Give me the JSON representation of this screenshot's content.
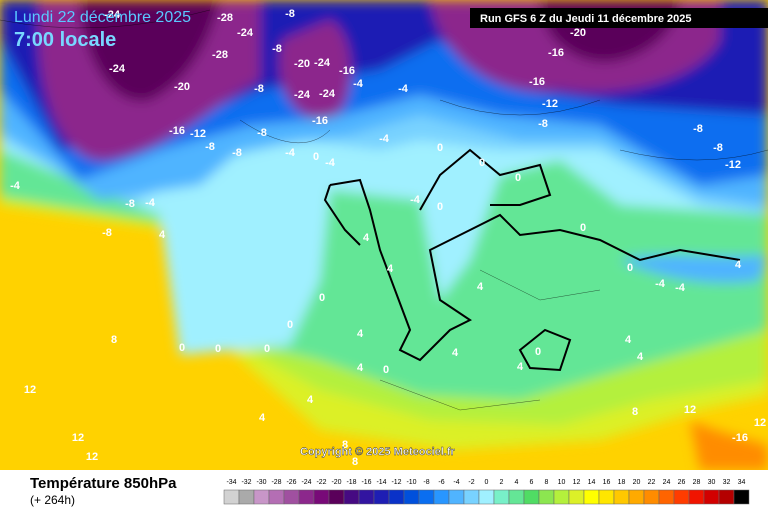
{
  "header": {
    "date": "Lundi 22 décembre 2025",
    "time": "7:00 locale",
    "run": "Run GFS 6 Z du Jeudi 11 décembre 2025"
  },
  "copyright": "Copyright © 2025 Meteociel.fr",
  "footer": {
    "title": "Température 850hPa",
    "lead": "(+ 264h)"
  },
  "scale": {
    "values": [
      -34,
      -32,
      -30,
      -28,
      -26,
      -24,
      -22,
      -20,
      -18,
      -16,
      -14,
      -12,
      -10,
      -8,
      -6,
      -4,
      -2,
      0,
      2,
      4,
      6,
      8,
      10,
      12,
      14,
      16,
      18,
      20,
      22,
      24,
      26,
      28,
      30,
      32,
      34
    ],
    "colors": [
      "#d2d2d2",
      "#aaaaaa",
      "#c896c8",
      "#b46eb4",
      "#a050a0",
      "#8c288c",
      "#780a78",
      "#5a005a",
      "#460a82",
      "#3214a0",
      "#1e1eb4",
      "#0a32c8",
      "#0050dc",
      "#0a6ef0",
      "#2896ff",
      "#50b4ff",
      "#78d2ff",
      "#a0f0ff",
      "#78f0c8",
      "#64e696",
      "#50dc64",
      "#8ce650",
      "#b4f03c",
      "#dcf028",
      "#ffff00",
      "#ffe600",
      "#ffc800",
      "#ffaa00",
      "#ff8c00",
      "#ff6400",
      "#ff3c00",
      "#f01400",
      "#d20000",
      "#b40000",
      "#000000"
    ]
  },
  "isotherm_labels": [
    -24,
    -28,
    -8,
    -24,
    -28,
    -24,
    -8,
    -20,
    -24,
    -16,
    -20,
    -24,
    -24,
    -8,
    -4,
    -4,
    -16,
    -12,
    -8,
    -16,
    -8,
    -8,
    -4,
    -4,
    0,
    -4,
    -20,
    -16,
    -16,
    -12,
    -8,
    -8,
    -8,
    -12,
    -4,
    -8,
    -4,
    -8,
    4,
    0,
    0,
    0,
    0,
    4,
    4,
    0,
    0,
    0,
    0,
    0,
    8,
    12,
    12,
    4,
    0,
    -4,
    -4,
    4,
    4,
    4,
    0,
    4,
    4,
    4,
    0,
    4,
    4,
    8,
    12,
    12,
    -16,
    8,
    8,
    12,
    0,
    -4,
    4
  ]
}
